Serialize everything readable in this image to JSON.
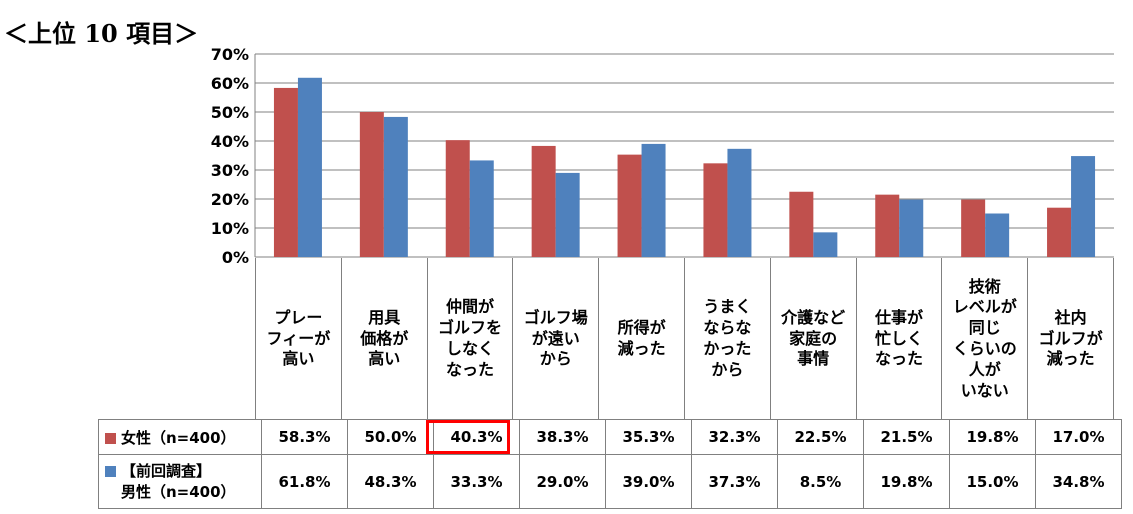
{
  "title": "＜上位 10 項目＞",
  "colors": {
    "female": "#c0504d",
    "male": "#4f81bd",
    "highlight": "#ff0000"
  },
  "chart_data": {
    "type": "bar",
    "categories": [
      "プレー\nフィーが\n高い",
      "用具\n価格が\n高い",
      "仲間が\nゴルフを\nしなく\nなった",
      "ゴルフ場\nが遠い\nから",
      "所得が\n減った",
      "うまく\nならな\nかった\nから",
      "介護など\n家庭の\n事情",
      "仕事が\n忙しく\nなった",
      "技術\nレベルが\n同じ\nくらいの\n人が\nいない",
      "社内\nゴルフが\n減った"
    ],
    "series": [
      {
        "name": "女性（n=400）",
        "values": [
          58.3,
          50.0,
          40.3,
          38.3,
          35.3,
          32.3,
          22.5,
          21.5,
          19.8,
          17.0
        ]
      },
      {
        "name": "【前回調査】男性（n=400）",
        "values": [
          61.8,
          48.3,
          33.3,
          29.0,
          39.0,
          37.3,
          8.5,
          19.8,
          15.0,
          34.8
        ]
      }
    ],
    "value_labels": [
      [
        "58.3%",
        "50.0%",
        "40.3%",
        "38.3%",
        "35.3%",
        "32.3%",
        "22.5%",
        "21.5%",
        "19.8%",
        "17.0%"
      ],
      [
        "61.8%",
        "48.3%",
        "33.3%",
        "29.0%",
        "39.0%",
        "37.3%",
        "8.5%",
        "19.8%",
        "15.0%",
        "34.8%"
      ]
    ],
    "y_ticks": [
      "0%",
      "10%",
      "20%",
      "30%",
      "40%",
      "50%",
      "60%",
      "70%"
    ],
    "ylim": [
      0,
      70
    ],
    "grid": true,
    "legend": "table-left",
    "table_labels": {
      "female": "女性（n=400）",
      "male_line1": "【前回調査】",
      "male_line2": "男性（n=400）"
    }
  }
}
